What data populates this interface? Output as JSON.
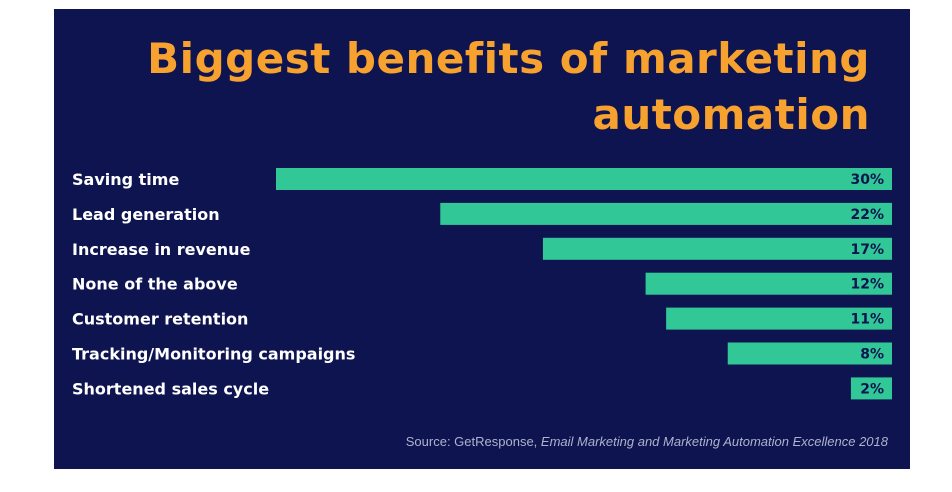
{
  "chart_data": {
    "type": "bar",
    "orientation": "horizontal",
    "title": "Biggest benefits of marketing automation",
    "categories": [
      "Saving time",
      "Lead generation",
      "Increase in revenue",
      "None of the above",
      "Customer retention",
      "Tracking/Monitoring campaigns",
      "Shortened sales cycle"
    ],
    "values": [
      30,
      22,
      17,
      12,
      11,
      8,
      2
    ],
    "value_labels": [
      "30%",
      "22%",
      "17%",
      "12%",
      "11%",
      "8%",
      "2%"
    ],
    "xlim": [
      0,
      30
    ],
    "grid": false,
    "legend": "none",
    "bar_alignment": "right"
  },
  "source": {
    "prefix": "Source: GetResponse, ",
    "title": "Email Marketing and Marketing Automation Excellence 2018"
  },
  "colors": {
    "background": "#0e1450",
    "bar": "#31c796",
    "title": "#f7a12f",
    "category_label": "#ffffff",
    "value_label": "#0e1450",
    "source_text": "#aeb2cc"
  }
}
